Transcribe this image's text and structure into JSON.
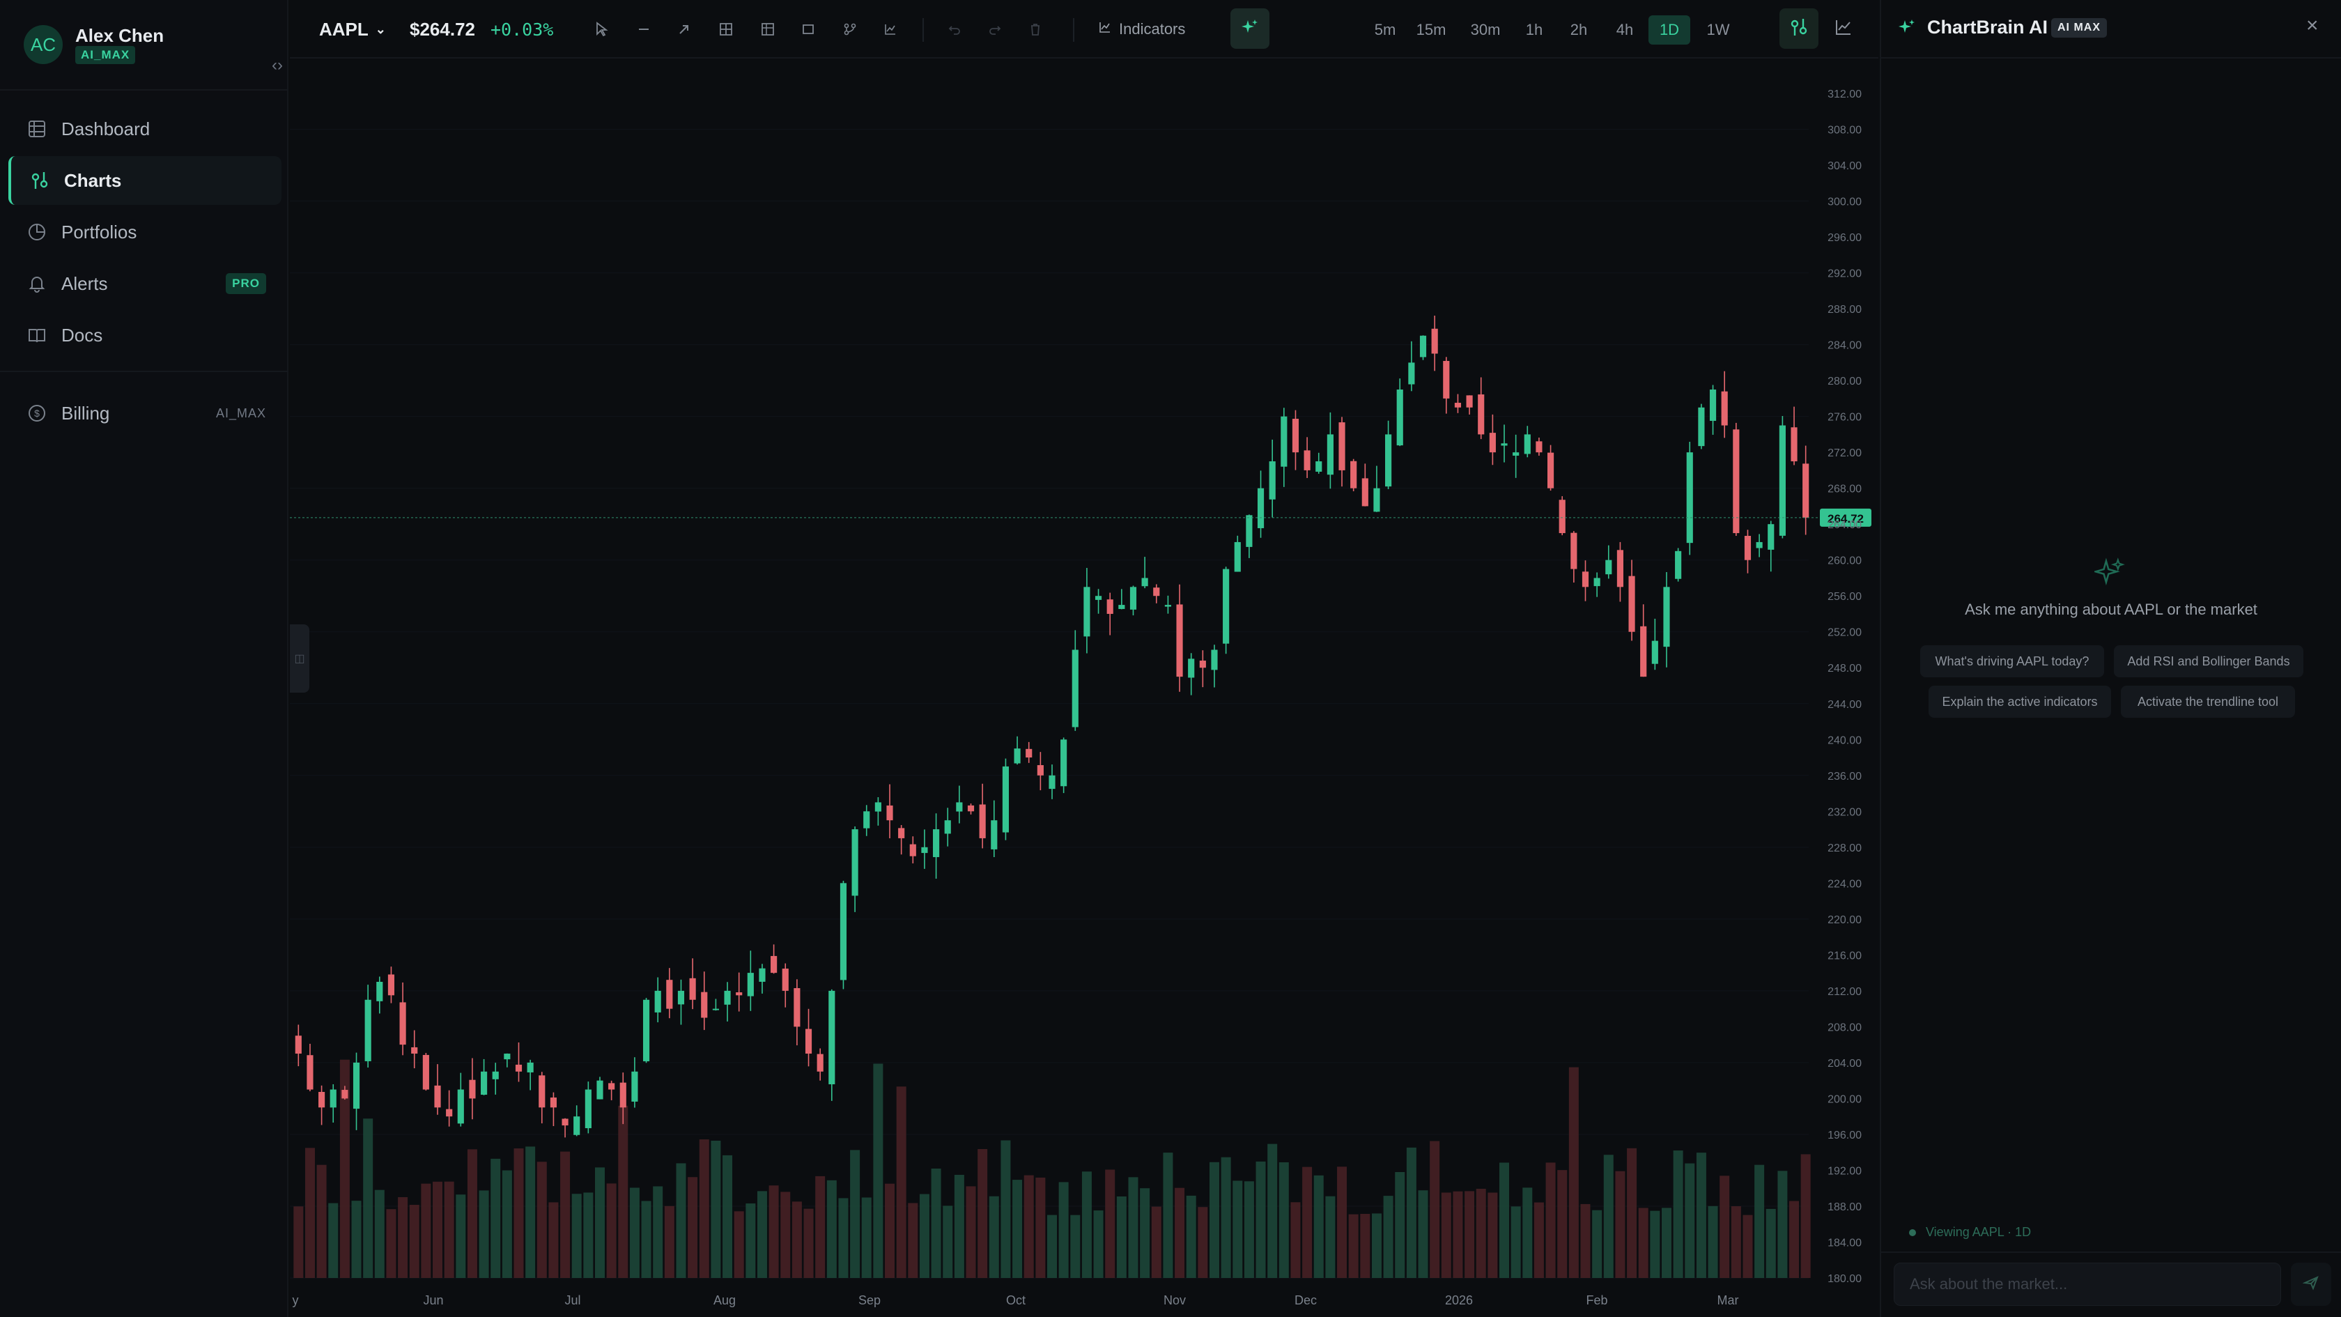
{
  "user": {
    "initials": "AC",
    "name": "Alex Chen",
    "tier": "AI_MAX"
  },
  "sidebar": {
    "items": [
      {
        "label": "Dashboard",
        "icon": "grid-icon"
      },
      {
        "label": "Charts",
        "icon": "charts-icon",
        "active": true
      },
      {
        "label": "Portfolios",
        "icon": "pie-icon"
      },
      {
        "label": "Alerts",
        "icon": "bell-icon",
        "badge": "PRO"
      },
      {
        "label": "Docs",
        "icon": "book-icon"
      },
      {
        "label": "Billing",
        "icon": "dollar-icon",
        "badge": "AI_MAX"
      }
    ]
  },
  "toolbar": {
    "symbol": "AAPL",
    "price": "$264.72",
    "change": "+0.03%",
    "indicators_label": "Indicators",
    "timeframes": [
      "5m",
      "15m",
      "30m",
      "1h",
      "2h",
      "4h",
      "1D",
      "1W"
    ],
    "active_timeframe": "1D"
  },
  "ai": {
    "title": "ChartBrain AI",
    "badge": "AI MAX",
    "prompt": "Ask me anything about AAPL or the market",
    "suggestions": [
      "What's driving AAPL today?",
      "Add RSI and Bollinger Bands",
      "Explain the active indicators",
      "Activate the trendline tool"
    ],
    "context": "Viewing AAPL · 1D",
    "input_placeholder": "Ask about the market..."
  },
  "colors": {
    "accent": "#3ad3a0",
    "up": "#34c391",
    "down": "#e5676e",
    "bg": "#0b0d10"
  },
  "chart_data": {
    "type": "candlestick",
    "symbol": "AAPL",
    "last_price": 264.72,
    "price_label": "264.72",
    "ylim": [
      180,
      312
    ],
    "y_ticks": [
      180,
      184,
      188,
      192,
      196,
      200,
      204,
      208,
      212,
      216,
      220,
      224,
      228,
      232,
      236,
      240,
      244,
      248,
      252,
      256,
      260,
      264,
      268,
      272,
      276,
      280,
      284,
      288,
      292,
      296,
      300,
      304,
      308,
      312
    ],
    "x_labels": [
      "y",
      "Jun",
      "Jul",
      "Aug",
      "Sep",
      "Oct",
      "Nov",
      "Dec",
      "2026",
      "Feb",
      "Mar"
    ],
    "series": [
      {
        "values": [
          205.0,
          201.0,
          199.0,
          201.0,
          200.0,
          204.0,
          211.0,
          213.0,
          211.5,
          206.0,
          205.0,
          201.0,
          199.0,
          198.0,
          201.0,
          200.0,
          203.0,
          203.0,
          205.0,
          203.0,
          204.0,
          199.0,
          199.0,
          197.0,
          198.0,
          201.0,
          202.0,
          201.0,
          199.0,
          203.0,
          211.0,
          212.0,
          210.0,
          212.0,
          211.0,
          209.0,
          210.0,
          212.0,
          211.5,
          214.0,
          214.5,
          214.0,
          212.0,
          208.0,
          205.0,
          203.0,
          212.0,
          224.0,
          230.0,
          232.0,
          233.0,
          231.0,
          229.0,
          227.0,
          228.0,
          230.0,
          231.0,
          233.0,
          232.0,
          229.0,
          231.0,
          237.0,
          239.0,
          238.0,
          236.0,
          236.0,
          240.0,
          250.0,
          257.0,
          256.0,
          254.0,
          255.0,
          257.0,
          258.0,
          256.0,
          255.0,
          247.0,
          249.0,
          248.0,
          250.0,
          259.0,
          262.0,
          265.0,
          268.0,
          271.0,
          276.0,
          272.0,
          270.0,
          271.0,
          274.0,
          270.0,
          268.0,
          266.0,
          268.0,
          274.0,
          279.0,
          282.0,
          285.0,
          283.0,
          278.0,
          277.0,
          277.0,
          274.0,
          272.0,
          273.0,
          272.0,
          274.0,
          272.0,
          268.0,
          263.0,
          259.0,
          257.0,
          258.0,
          260.0,
          257.0,
          252.0,
          247.0,
          251.0,
          257.0,
          261.0,
          272.0,
          277.0,
          279.0,
          275.0,
          263.0,
          260.0,
          262.0,
          264.0,
          275.0,
          271.0,
          264.72
        ]
      }
    ]
  }
}
